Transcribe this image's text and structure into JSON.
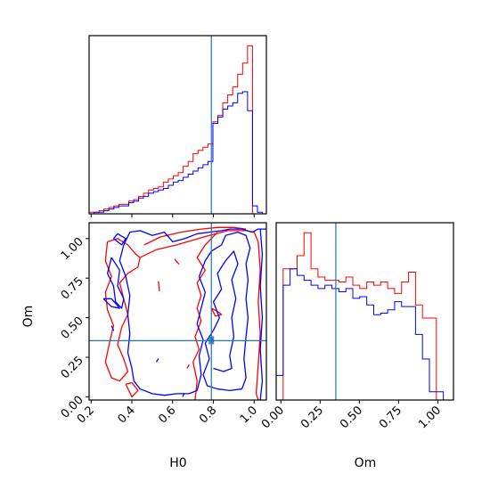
{
  "colors": {
    "series_a": "#ff0000",
    "series_b": "#0000ff",
    "truth": "#1f77b4",
    "axes": "#000000"
  },
  "chart_data": [
    {
      "type": "histogram",
      "panel": "marginal-H0",
      "x_param": "H0",
      "xlim": [
        0.19,
        1.06
      ],
      "x_ticks": [
        0.2,
        0.4,
        0.6,
        0.8,
        1.0
      ],
      "x_tick_labels_shown": false,
      "y_axis_shown": false,
      "truth_x": 0.79,
      "bin_edges": [
        0.19,
        0.2143,
        0.2386,
        0.2629,
        0.2872,
        0.3115,
        0.3358,
        0.3601,
        0.3844,
        0.4087,
        0.433,
        0.4573,
        0.4816,
        0.5059,
        0.5302,
        0.5545,
        0.5788,
        0.6031,
        0.6274,
        0.6517,
        0.676,
        0.7003,
        0.7246,
        0.7489,
        0.7732,
        0.7975,
        0.8218,
        0.8461,
        0.8704,
        0.8947,
        0.919,
        0.9433,
        0.9676,
        0.9919,
        1.0162,
        1.0405
      ],
      "series": [
        {
          "color": "#ff0000",
          "heights": [
            1,
            1,
            2,
            3,
            4,
            5,
            6,
            6,
            8,
            9,
            11,
            13,
            15,
            16,
            17,
            20,
            22,
            24,
            26,
            30,
            33,
            38,
            40,
            42,
            44,
            58,
            62,
            70,
            75,
            80,
            88,
            95,
            106,
            0,
            0
          ]
        },
        {
          "color": "#0000ff",
          "heights": [
            0,
            1,
            1,
            2,
            3,
            4,
            5,
            5,
            7,
            8,
            10,
            11,
            13,
            14,
            15,
            16,
            18,
            20,
            21,
            23,
            25,
            27,
            29,
            31,
            33,
            57,
            61,
            66,
            68,
            70,
            76,
            77,
            65,
            5,
            1
          ]
        }
      ]
    },
    {
      "type": "contour",
      "panel": "joint-H0-Om",
      "x_param": "H0",
      "y_param": "Om",
      "xlabel": "H0",
      "ylabel": "Om",
      "xlim": [
        0.19,
        1.06
      ],
      "ylim": [
        -0.02,
        1.1
      ],
      "x_ticks": [
        "0.2",
        "0.4",
        "0.6",
        "0.8",
        "1.0"
      ],
      "y_ticks": [
        "0.00",
        "0.25",
        "0.50",
        "0.75",
        "1.00"
      ],
      "truth_x": 0.79,
      "truth_y": 0.355,
      "series": [
        {
          "color": "#ff0000",
          "contours": [
            [
              [
                0.28,
                0.98
              ],
              [
                0.33,
                1.0
              ],
              [
                0.38,
                0.96
              ],
              [
                0.42,
                0.9
              ],
              [
                0.44,
                0.88
              ],
              [
                0.43,
                0.82
              ],
              [
                0.38,
                0.78
              ],
              [
                0.34,
                0.72
              ],
              [
                0.36,
                0.62
              ],
              [
                0.38,
                0.52
              ],
              [
                0.35,
                0.44
              ],
              [
                0.33,
                0.33
              ],
              [
                0.36,
                0.24
              ],
              [
                0.38,
                0.16
              ],
              [
                0.34,
                0.1
              ],
              [
                0.3,
                0.12
              ],
              [
                0.27,
                0.22
              ],
              [
                0.29,
                0.34
              ],
              [
                0.31,
                0.45
              ],
              [
                0.28,
                0.55
              ],
              [
                0.27,
                0.66
              ],
              [
                0.3,
                0.76
              ],
              [
                0.27,
                0.86
              ],
              [
                0.28,
                0.98
              ]
            ],
            [
              [
                0.44,
                0.88
              ],
              [
                0.52,
                0.93
              ],
              [
                0.62,
                0.96
              ],
              [
                0.7,
                0.99
              ],
              [
                0.78,
                1.02
              ],
              [
                0.87,
                1.05
              ],
              [
                0.96,
                1.05
              ],
              [
                1.0,
                1.04
              ],
              [
                1.02,
                0.98
              ]
            ],
            [
              [
                0.46,
                0.96
              ],
              [
                0.54,
                1.01
              ],
              [
                0.64,
                1.04
              ],
              [
                0.74,
                1.06
              ],
              [
                0.82,
                1.07
              ],
              [
                0.9,
                1.07
              ],
              [
                0.96,
                1.06
              ]
            ],
            [
              [
                1.02,
                0.98
              ],
              [
                1.03,
                0.8
              ],
              [
                1.02,
                0.6
              ],
              [
                1.03,
                0.4
              ],
              [
                1.02,
                0.2
              ],
              [
                1.01,
                0.02
              ],
              [
                1.02,
                -0.02
              ]
            ],
            [
              [
                0.82,
                1.04
              ],
              [
                0.76,
                0.96
              ],
              [
                0.72,
                0.88
              ],
              [
                0.76,
                0.8
              ],
              [
                0.72,
                0.72
              ],
              [
                0.74,
                0.64
              ],
              [
                0.72,
                0.56
              ],
              [
                0.74,
                0.48
              ],
              [
                0.71,
                0.38
              ],
              [
                0.73,
                0.3
              ],
              [
                0.7,
                0.22
              ],
              [
                0.72,
                0.1
              ],
              [
                0.71,
                -0.02
              ]
            ],
            [
              [
                0.37,
                0.08
              ],
              [
                0.4,
                0.0
              ],
              [
                0.43,
                0.04
              ],
              [
                0.4,
                0.09
              ],
              [
                0.37,
                0.08
              ]
            ],
            [
              [
                0.53,
                0.73
              ],
              [
                0.535,
                0.67
              ],
              [
                0.53,
                0.73
              ]
            ],
            [
              [
                0.79,
                0.56
              ],
              [
                0.82,
                0.54
              ],
              [
                0.84,
                0.52
              ],
              [
                0.81,
                0.51
              ],
              [
                0.79,
                0.56
              ]
            ],
            [
              [
                0.61,
                0.87
              ],
              [
                0.63,
                0.84
              ],
              [
                0.61,
                0.87
              ]
            ],
            [
              [
                0.67,
                0.18
              ],
              [
                0.68,
                0.2
              ],
              [
                0.67,
                0.18
              ]
            ]
          ]
        },
        {
          "color": "#0000ff",
          "contours": [
            [
              [
                0.31,
                1.0
              ],
              [
                0.33,
                1.03
              ],
              [
                0.37,
                1.0
              ],
              [
                0.35,
                0.96
              ],
              [
                0.31,
                1.0
              ]
            ],
            [
              [
                0.3,
                0.88
              ],
              [
                0.34,
                0.8
              ],
              [
                0.33,
                0.7
              ],
              [
                0.36,
                0.62
              ],
              [
                0.35,
                0.56
              ],
              [
                0.32,
                0.6
              ],
              [
                0.31,
                0.7
              ],
              [
                0.28,
                0.78
              ],
              [
                0.3,
                0.88
              ]
            ],
            [
              [
                0.26,
                0.62
              ],
              [
                0.3,
                0.57
              ],
              [
                0.34,
                0.56
              ],
              [
                0.3,
                0.62
              ],
              [
                0.26,
                0.62
              ]
            ],
            [
              [
                0.36,
                0.96
              ],
              [
                0.39,
                1.04
              ],
              [
                0.44,
                1.05
              ],
              [
                0.5,
                1.02
              ],
              [
                0.56,
                1.04
              ],
              [
                0.6,
                0.98
              ],
              [
                0.66,
                1.0
              ],
              [
                0.72,
                1.03
              ],
              [
                0.78,
                1.04
              ],
              [
                0.84,
                1.05
              ],
              [
                0.88,
                1.06
              ],
              [
                0.94,
                1.06
              ],
              [
                0.99,
                1.04
              ],
              [
                1.02,
                1.06
              ],
              [
                1.06,
                1.06
              ]
            ],
            [
              [
                0.36,
                0.96
              ],
              [
                0.34,
                0.86
              ],
              [
                0.37,
                0.76
              ],
              [
                0.39,
                0.64
              ],
              [
                0.38,
                0.52
              ],
              [
                0.39,
                0.4
              ],
              [
                0.38,
                0.28
              ],
              [
                0.4,
                0.18
              ],
              [
                0.41,
                0.1
              ],
              [
                0.44,
                0.05
              ],
              [
                0.5,
                0.02
              ],
              [
                0.56,
                0.01
              ],
              [
                0.62,
                0.02
              ],
              [
                0.68,
                0.02
              ],
              [
                0.72,
                0.04
              ],
              [
                0.74,
                0.14
              ],
              [
                0.73,
                0.26
              ],
              [
                0.75,
                0.36
              ],
              [
                0.72,
                0.46
              ],
              [
                0.74,
                0.56
              ],
              [
                0.76,
                0.66
              ],
              [
                0.73,
                0.76
              ],
              [
                0.76,
                0.86
              ],
              [
                0.79,
                0.92
              ],
              [
                0.84,
                0.96
              ],
              [
                0.86,
                1.02
              ],
              [
                0.92,
                1.04
              ],
              [
                0.96,
                1.02
              ],
              [
                0.98,
                0.94
              ],
              [
                0.96,
                0.84
              ],
              [
                0.97,
                0.74
              ],
              [
                0.96,
                0.62
              ],
              [
                0.97,
                0.5
              ],
              [
                0.96,
                0.38
              ],
              [
                0.95,
                0.24
              ],
              [
                0.96,
                0.12
              ],
              [
                0.94,
                0.05
              ],
              [
                0.88,
                0.04
              ],
              [
                0.82,
                0.05
              ],
              [
                0.77,
                0.07
              ],
              [
                0.75,
                0.14
              ],
              [
                0.78,
                0.24
              ],
              [
                0.76,
                0.34
              ],
              [
                0.8,
                0.42
              ],
              [
                0.83,
                0.5
              ],
              [
                0.8,
                0.6
              ],
              [
                0.84,
                0.68
              ],
              [
                0.82,
                0.78
              ],
              [
                0.86,
                0.86
              ],
              [
                0.9,
                0.92
              ],
              [
                0.92,
                0.84
              ],
              [
                0.89,
                0.74
              ],
              [
                0.91,
                0.62
              ],
              [
                0.89,
                0.5
              ],
              [
                0.9,
                0.38
              ],
              [
                0.88,
                0.26
              ],
              [
                0.89,
                0.18
              ],
              [
                0.85,
                0.16
              ],
              [
                0.8,
                0.18
              ]
            ],
            [
              [
                1.03,
                1.06
              ],
              [
                1.04,
                0.9
              ],
              [
                1.03,
                0.7
              ],
              [
                1.04,
                0.5
              ],
              [
                1.03,
                0.3
              ],
              [
                1.04,
                0.1
              ],
              [
                1.03,
                -0.02
              ]
            ],
            [
              [
                0.3,
                0.45
              ],
              [
                0.31,
                0.42
              ],
              [
                0.3,
                0.45
              ]
            ],
            [
              [
                0.52,
                0.22
              ],
              [
                0.53,
                0.24
              ],
              [
                0.52,
                0.22
              ]
            ],
            [
              [
                0.65,
                0.0
              ],
              [
                0.655,
                0.02
              ],
              [
                0.65,
                0.0
              ]
            ],
            [
              [
                0.79,
                0.38
              ],
              [
                0.8,
                0.35
              ],
              [
                0.79,
                0.38
              ]
            ]
          ]
        }
      ]
    },
    {
      "type": "histogram",
      "panel": "marginal-Om",
      "x_param": "Om",
      "xlabel": "Om",
      "xlim": [
        -0.03,
        1.1
      ],
      "x_ticks": [
        "0.00",
        "0.25",
        "0.50",
        "0.75",
        "1.00"
      ],
      "y_axis_shown": false,
      "truth_x": 0.35,
      "bin_edges": [
        -0.03,
        0.0144,
        0.0588,
        0.1032,
        0.1476,
        0.192,
        0.2364,
        0.2808,
        0.3252,
        0.3696,
        0.414,
        0.4584,
        0.5028,
        0.5472,
        0.5916,
        0.636,
        0.6804,
        0.7248,
        0.7692,
        0.8136,
        0.858,
        0.9024,
        0.9468,
        0.9912,
        1.0356,
        1.08
      ],
      "series": [
        {
          "color": "#ff0000",
          "heights": [
            0,
            80,
            80,
            88,
            102,
            80,
            75,
            73,
            73,
            72,
            75,
            70,
            68,
            72,
            70,
            72,
            68,
            65,
            72,
            78,
            58,
            50,
            50,
            0,
            0
          ]
        },
        {
          "color": "#0000ff",
          "heights": [
            15,
            70,
            80,
            76,
            73,
            70,
            68,
            70,
            68,
            66,
            68,
            62,
            63,
            58,
            52,
            53,
            55,
            60,
            57,
            57,
            40,
            25,
            5,
            5,
            0
          ]
        }
      ]
    }
  ]
}
